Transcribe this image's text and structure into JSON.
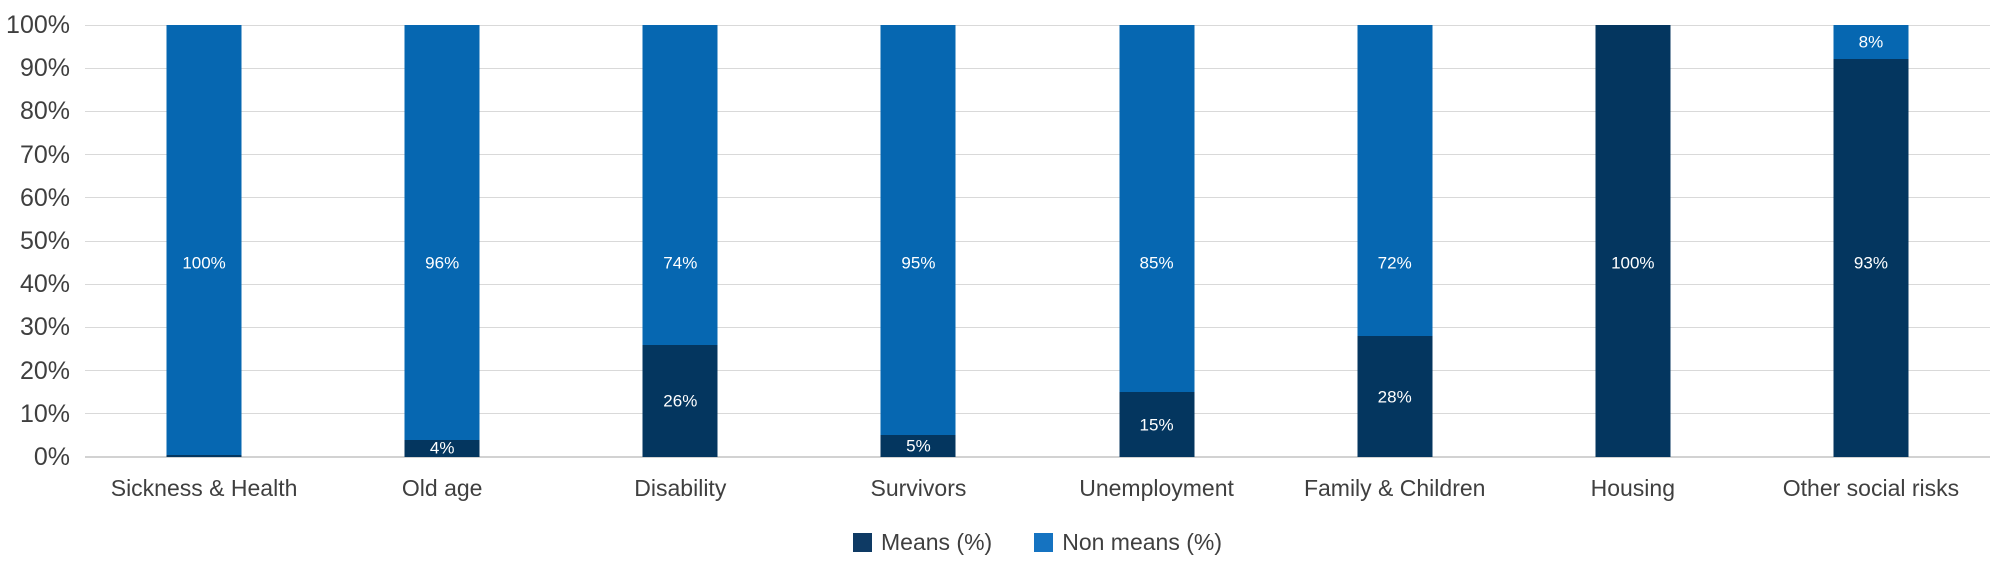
{
  "chart_data": {
    "type": "bar",
    "stacked": true,
    "percent_stacked": true,
    "title": "",
    "xlabel": "",
    "ylabel": "",
    "categories": [
      "Sickness & Health",
      "Old age",
      "Disability",
      "Survivors",
      "Unemployment",
      "Family & Children",
      "Housing",
      "Other social risks"
    ],
    "series": [
      {
        "name": "Means (%)",
        "color": "#04365f",
        "values": [
          0.4,
          4,
          26,
          5,
          15,
          28,
          100,
          93
        ],
        "labels": [
          "",
          "4%",
          "26%",
          "5%",
          "15%",
          "28%",
          "100%",
          "93%"
        ]
      },
      {
        "name": "Non means (%)",
        "color": "#0667b1",
        "values": [
          100,
          96,
          74,
          95,
          85,
          72,
          0,
          8
        ],
        "labels": [
          "100%",
          "96%",
          "74%",
          "95%",
          "85%",
          "72%",
          "",
          "8%"
        ]
      }
    ],
    "y_axis": {
      "min": 0,
      "max": 100,
      "tick_step": 10,
      "ticks": [
        "0%",
        "10%",
        "20%",
        "30%",
        "40%",
        "50%",
        "60%",
        "70%",
        "80%",
        "90%",
        "100%"
      ]
    },
    "grid": true,
    "gridline_color": "#d9d9d9",
    "legend_position": "bottom",
    "legend": [
      {
        "label": "Means (%)",
        "color": "#0e3a64"
      },
      {
        "label": "Non means (%)",
        "color": "#1573c1"
      }
    ]
  }
}
